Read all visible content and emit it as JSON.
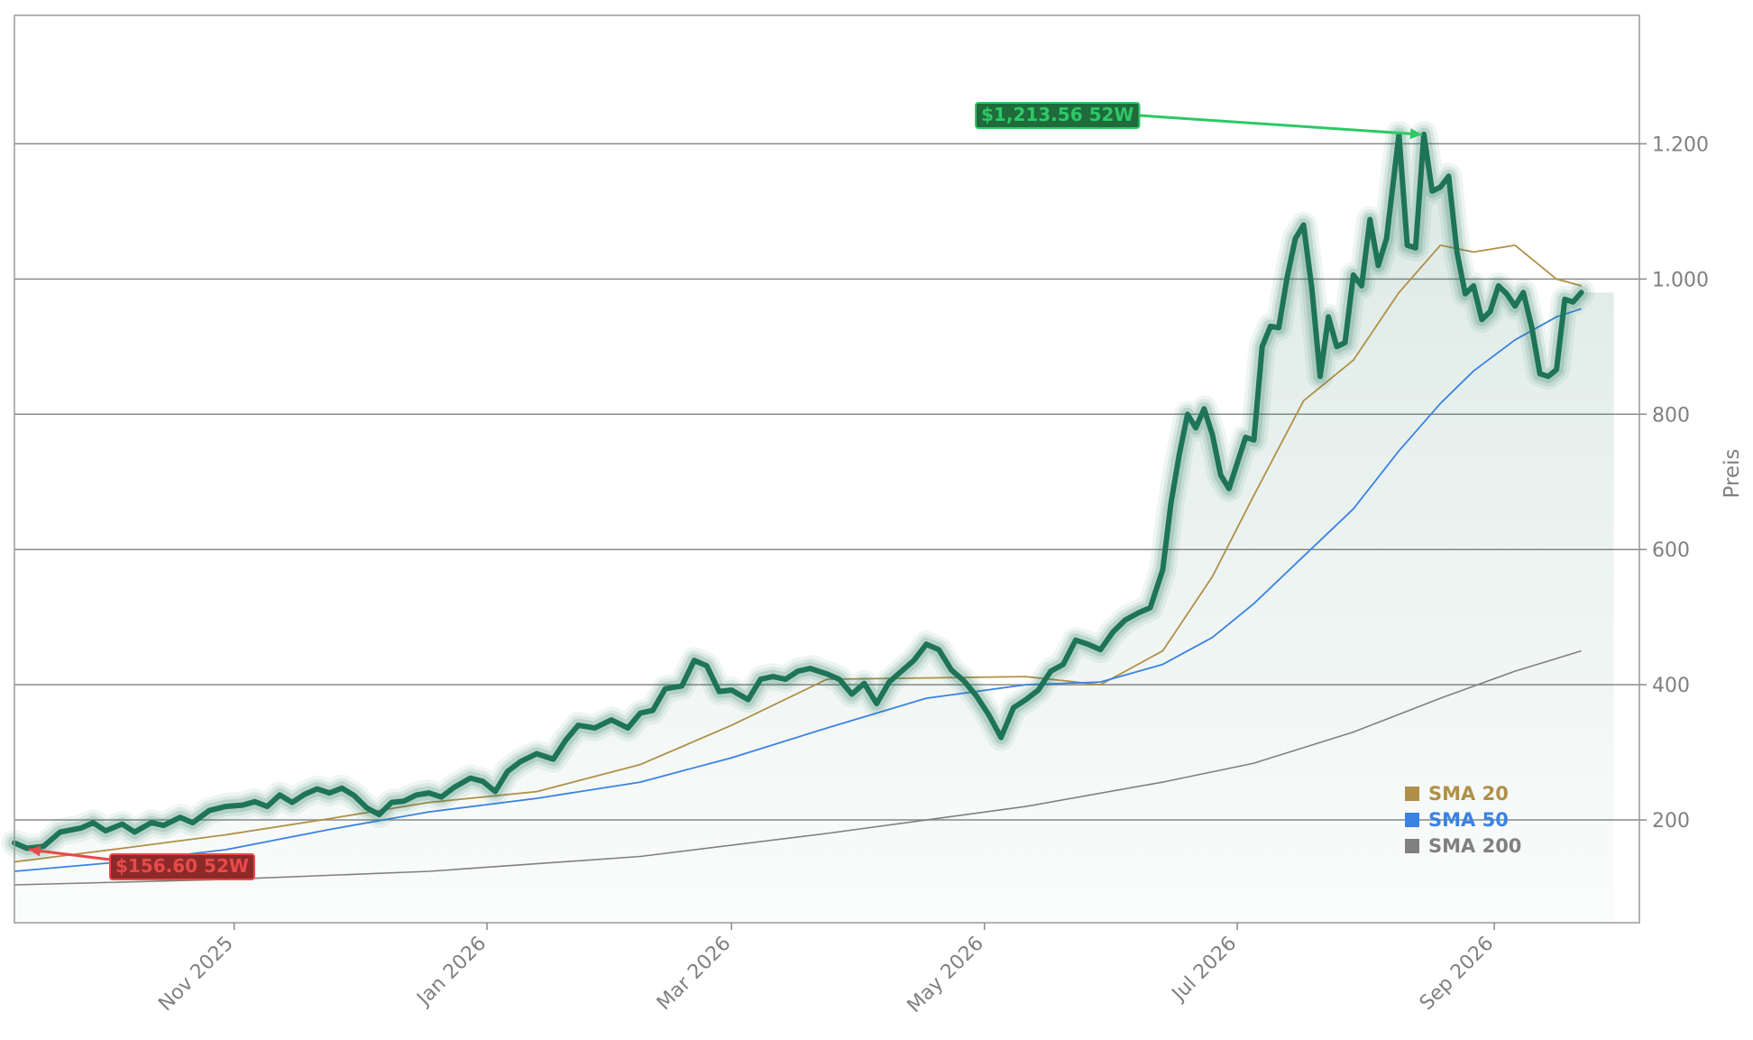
{
  "chart_data": {
    "type": "line",
    "ylabel": "Preis",
    "ylim": [
      48,
      1390
    ],
    "xlim": [
      "2025-09-09",
      "2026-10-06"
    ],
    "grid": "horizontal",
    "legend_placement": "bottom-right",
    "y_ticks": [
      {
        "value": 200,
        "label": "200"
      },
      {
        "value": 400,
        "label": "400"
      },
      {
        "value": 600,
        "label": "600"
      },
      {
        "value": 800,
        "label": "800"
      },
      {
        "value": 1000,
        "label": "1.000"
      },
      {
        "value": 1200,
        "label": "1.200"
      }
    ],
    "x_ticks": [
      {
        "date": "2025-11-01",
        "label": "Nov 2025"
      },
      {
        "date": "2026-01-01",
        "label": "Jan 2026"
      },
      {
        "date": "2026-03-01",
        "label": "Mar 2026"
      },
      {
        "date": "2026-05-01",
        "label": "May 2026"
      },
      {
        "date": "2026-07-01",
        "label": "Jul 2026"
      },
      {
        "date": "2026-09-01",
        "label": "Sep 2026"
      }
    ],
    "series": [
      {
        "key": "price",
        "color": "#1e7458",
        "data": [
          [
            "2025-09-09",
            166
          ],
          [
            "2025-09-12",
            158
          ],
          [
            "2025-09-16",
            161
          ],
          [
            "2025-09-20",
            182
          ],
          [
            "2025-09-25",
            188
          ],
          [
            "2025-09-28",
            196
          ],
          [
            "2025-10-01",
            184
          ],
          [
            "2025-10-05",
            194
          ],
          [
            "2025-10-08",
            182
          ],
          [
            "2025-10-12",
            196
          ],
          [
            "2025-10-15",
            192
          ],
          [
            "2025-10-19",
            204
          ],
          [
            "2025-10-22",
            196
          ],
          [
            "2025-10-26",
            214
          ],
          [
            "2025-10-30",
            220
          ],
          [
            "2025-11-03",
            222
          ],
          [
            "2025-11-06",
            227
          ],
          [
            "2025-11-09",
            220
          ],
          [
            "2025-11-12",
            237
          ],
          [
            "2025-11-15",
            226
          ],
          [
            "2025-11-18",
            238
          ],
          [
            "2025-11-21",
            246
          ],
          [
            "2025-11-24",
            240
          ],
          [
            "2025-11-27",
            247
          ],
          [
            "2025-11-30",
            236
          ],
          [
            "2025-12-03",
            218
          ],
          [
            "2025-12-06",
            208
          ],
          [
            "2025-12-09",
            226
          ],
          [
            "2025-12-12",
            228
          ],
          [
            "2025-12-15",
            237
          ],
          [
            "2025-12-18",
            240
          ],
          [
            "2025-12-21",
            234
          ],
          [
            "2025-12-24",
            248
          ],
          [
            "2025-12-28",
            262
          ],
          [
            "2025-12-31",
            257
          ],
          [
            "2026-01-03",
            242
          ],
          [
            "2026-01-06",
            272
          ],
          [
            "2026-01-09",
            286
          ],
          [
            "2026-01-13",
            298
          ],
          [
            "2026-01-17",
            290
          ],
          [
            "2026-01-20",
            318
          ],
          [
            "2026-01-23",
            340
          ],
          [
            "2026-01-27",
            336
          ],
          [
            "2026-01-31",
            348
          ],
          [
            "2026-02-04",
            336
          ],
          [
            "2026-02-07",
            358
          ],
          [
            "2026-02-10",
            362
          ],
          [
            "2026-02-13",
            394
          ],
          [
            "2026-02-17",
            398
          ],
          [
            "2026-02-20",
            436
          ],
          [
            "2026-02-23",
            428
          ],
          [
            "2026-02-26",
            390
          ],
          [
            "2026-03-01",
            392
          ],
          [
            "2026-03-05",
            378
          ],
          [
            "2026-03-08",
            408
          ],
          [
            "2026-03-11",
            412
          ],
          [
            "2026-03-14",
            408
          ],
          [
            "2026-03-17",
            420
          ],
          [
            "2026-03-20",
            424
          ],
          [
            "2026-03-24",
            416
          ],
          [
            "2026-03-27",
            408
          ],
          [
            "2026-03-30",
            386
          ],
          [
            "2026-04-02",
            402
          ],
          [
            "2026-04-05",
            372
          ],
          [
            "2026-04-08",
            404
          ],
          [
            "2026-04-11",
            420
          ],
          [
            "2026-04-14",
            436
          ],
          [
            "2026-04-17",
            460
          ],
          [
            "2026-04-20",
            452
          ],
          [
            "2026-04-23",
            422
          ],
          [
            "2026-04-26",
            406
          ],
          [
            "2026-04-29",
            384
          ],
          [
            "2026-05-02",
            356
          ],
          [
            "2026-05-05",
            322
          ],
          [
            "2026-05-08",
            366
          ],
          [
            "2026-05-11",
            378
          ],
          [
            "2026-05-14",
            392
          ],
          [
            "2026-05-17",
            420
          ],
          [
            "2026-05-20",
            430
          ],
          [
            "2026-05-23",
            466
          ],
          [
            "2026-05-26",
            460
          ],
          [
            "2026-05-29",
            452
          ],
          [
            "2026-06-01",
            478
          ],
          [
            "2026-06-04",
            496
          ],
          [
            "2026-06-07",
            506
          ],
          [
            "2026-06-10",
            514
          ],
          [
            "2026-06-13",
            570
          ],
          [
            "2026-06-15",
            668
          ],
          [
            "2026-06-17",
            740
          ],
          [
            "2026-06-19",
            800
          ],
          [
            "2026-06-21",
            780
          ],
          [
            "2026-06-23",
            808
          ],
          [
            "2026-06-25",
            770
          ],
          [
            "2026-06-27",
            710
          ],
          [
            "2026-06-29",
            690
          ],
          [
            "2026-07-01",
            728
          ],
          [
            "2026-07-03",
            766
          ],
          [
            "2026-07-05",
            762
          ],
          [
            "2026-07-07",
            900
          ],
          [
            "2026-07-09",
            930
          ],
          [
            "2026-07-11",
            928
          ],
          [
            "2026-07-13",
            1002
          ],
          [
            "2026-07-15",
            1060
          ],
          [
            "2026-07-17",
            1080
          ],
          [
            "2026-07-19",
            986
          ],
          [
            "2026-07-21",
            856
          ],
          [
            "2026-07-23",
            944
          ],
          [
            "2026-07-25",
            900
          ],
          [
            "2026-07-27",
            906
          ],
          [
            "2026-07-29",
            1006
          ],
          [
            "2026-07-31",
            990
          ],
          [
            "2026-08-02",
            1088
          ],
          [
            "2026-08-04",
            1020
          ],
          [
            "2026-08-06",
            1060
          ],
          [
            "2026-08-09",
            1214
          ],
          [
            "2026-08-11",
            1050
          ],
          [
            "2026-08-13",
            1046
          ],
          [
            "2026-08-15",
            1214
          ],
          [
            "2026-08-17",
            1130
          ],
          [
            "2026-08-19",
            1136
          ],
          [
            "2026-08-21",
            1152
          ],
          [
            "2026-08-23",
            1040
          ],
          [
            "2026-08-25",
            978
          ],
          [
            "2026-08-27",
            990
          ],
          [
            "2026-08-29",
            940
          ],
          [
            "2026-08-31",
            952
          ],
          [
            "2026-09-02",
            990
          ],
          [
            "2026-09-04",
            978
          ],
          [
            "2026-09-06",
            960
          ],
          [
            "2026-09-08",
            980
          ],
          [
            "2026-09-10",
            930
          ],
          [
            "2026-09-12",
            860
          ],
          [
            "2026-09-14",
            856
          ],
          [
            "2026-09-16",
            866
          ],
          [
            "2026-09-18",
            970
          ],
          [
            "2026-09-20",
            966
          ],
          [
            "2026-09-22",
            980
          ]
        ]
      },
      {
        "key": "sma20",
        "name": "SMA 20",
        "color": "#b09048",
        "data": [
          [
            "2025-09-09",
            138
          ],
          [
            "2025-10-05",
            158
          ],
          [
            "2025-10-30",
            178
          ],
          [
            "2025-11-24",
            202
          ],
          [
            "2025-12-18",
            226
          ],
          [
            "2026-01-13",
            242
          ],
          [
            "2026-02-07",
            282
          ],
          [
            "2026-03-01",
            340
          ],
          [
            "2026-03-24",
            408
          ],
          [
            "2026-04-17",
            410
          ],
          [
            "2026-05-11",
            412
          ],
          [
            "2026-05-29",
            400
          ],
          [
            "2026-06-13",
            450
          ],
          [
            "2026-06-25",
            560
          ],
          [
            "2026-07-05",
            680
          ],
          [
            "2026-07-17",
            820
          ],
          [
            "2026-07-29",
            880
          ],
          [
            "2026-08-09",
            980
          ],
          [
            "2026-08-19",
            1050
          ],
          [
            "2026-08-27",
            1040
          ],
          [
            "2026-09-06",
            1050
          ],
          [
            "2026-09-16",
            1000
          ],
          [
            "2026-09-22",
            990
          ]
        ]
      },
      {
        "key": "sma50",
        "name": "SMA 50",
        "color": "#3a82e4",
        "data": [
          [
            "2025-09-09",
            124
          ],
          [
            "2025-10-05",
            138
          ],
          [
            "2025-10-30",
            156
          ],
          [
            "2025-11-24",
            186
          ],
          [
            "2025-12-18",
            212
          ],
          [
            "2026-01-13",
            232
          ],
          [
            "2026-02-07",
            256
          ],
          [
            "2026-03-01",
            292
          ],
          [
            "2026-03-24",
            336
          ],
          [
            "2026-04-17",
            380
          ],
          [
            "2026-05-11",
            400
          ],
          [
            "2026-05-29",
            404
          ],
          [
            "2026-06-13",
            430
          ],
          [
            "2026-06-25",
            470
          ],
          [
            "2026-07-05",
            520
          ],
          [
            "2026-07-17",
            590
          ],
          [
            "2026-07-29",
            660
          ],
          [
            "2026-08-09",
            746
          ],
          [
            "2026-08-19",
            816
          ],
          [
            "2026-08-27",
            864
          ],
          [
            "2026-09-06",
            910
          ],
          [
            "2026-09-16",
            944
          ],
          [
            "2026-09-22",
            956
          ]
        ]
      },
      {
        "key": "sma200",
        "name": "SMA 200",
        "color": "#808080",
        "data": [
          [
            "2025-09-09",
            104
          ],
          [
            "2025-10-30",
            112
          ],
          [
            "2025-12-18",
            124
          ],
          [
            "2026-02-07",
            146
          ],
          [
            "2026-03-24",
            180
          ],
          [
            "2026-05-11",
            220
          ],
          [
            "2026-06-13",
            256
          ],
          [
            "2026-07-05",
            284
          ],
          [
            "2026-07-29",
            330
          ],
          [
            "2026-08-19",
            380
          ],
          [
            "2026-09-06",
            420
          ],
          [
            "2026-09-22",
            450
          ]
        ]
      }
    ],
    "annotations": [
      {
        "key": "low",
        "label": "$156.60 52W",
        "date": "2025-09-12",
        "value": 156.6,
        "color": "#e84a4a",
        "fill": "#8c2a2a"
      },
      {
        "key": "high",
        "label": "$1,213.56 52W",
        "date": "2026-08-15",
        "value": 1213.56,
        "color": "#2ec866",
        "fill": "#1f6b3c"
      }
    ]
  }
}
